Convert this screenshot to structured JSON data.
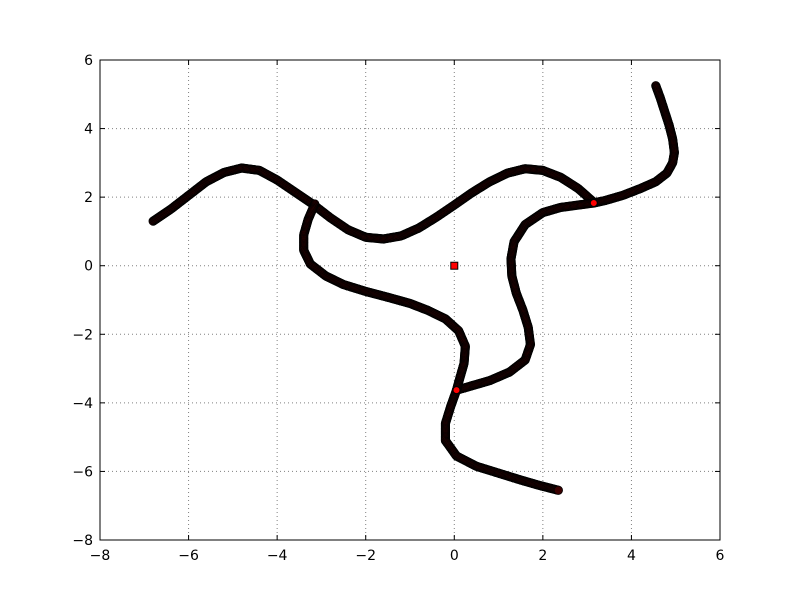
{
  "chart_data": {
    "type": "scatter",
    "title": "",
    "xlabel": "",
    "ylabel": "",
    "xlim": [
      -8,
      6
    ],
    "ylim": [
      -8,
      6
    ],
    "xticks": [
      -8,
      -6,
      -4,
      -2,
      0,
      2,
      4,
      6
    ],
    "yticks": [
      -8,
      -6,
      -4,
      -2,
      0,
      2,
      4,
      6
    ],
    "xtick_labels": [
      "−8",
      "−6",
      "−4",
      "−2",
      "0",
      "2",
      "4",
      "6"
    ],
    "ytick_labels": [
      "−8",
      "−6",
      "−4",
      "−2",
      "0",
      "2",
      "4",
      "6"
    ],
    "grid": true,
    "grid_style": "dotted",
    "legend": "none",
    "colors": {
      "trajectory_fill": "#3a0000",
      "trajectory_edge": "#000000",
      "highlight_fill": "#ff0000",
      "highlight_edge": "#000000",
      "grid": "#808080"
    },
    "series": [
      {
        "points": [
          [
            -6.8,
            1.3
          ],
          [
            -6.4,
            1.65
          ],
          [
            -6.0,
            2.05
          ],
          [
            -5.6,
            2.45
          ],
          [
            -5.2,
            2.72
          ],
          [
            -4.8,
            2.85
          ],
          [
            -4.4,
            2.78
          ],
          [
            -4.0,
            2.5
          ],
          [
            -3.6,
            2.15
          ],
          [
            -3.2,
            1.8
          ],
          [
            -2.8,
            1.4
          ],
          [
            -2.4,
            1.05
          ],
          [
            -2.0,
            0.83
          ],
          [
            -1.6,
            0.78
          ],
          [
            -1.2,
            0.87
          ],
          [
            -0.8,
            1.1
          ],
          [
            -0.4,
            1.42
          ],
          [
            0.0,
            1.77
          ],
          [
            0.4,
            2.13
          ],
          [
            0.8,
            2.45
          ],
          [
            1.2,
            2.7
          ],
          [
            1.6,
            2.83
          ],
          [
            2.0,
            2.78
          ],
          [
            2.4,
            2.58
          ],
          [
            2.8,
            2.25
          ],
          [
            3.15,
            1.85
          ]
        ]
      },
      {
        "points": [
          [
            4.55,
            5.25
          ],
          [
            4.65,
            4.9
          ],
          [
            4.75,
            4.5
          ],
          [
            4.85,
            4.1
          ],
          [
            4.93,
            3.7
          ],
          [
            4.97,
            3.3
          ],
          [
            4.93,
            3.0
          ],
          [
            4.8,
            2.7
          ],
          [
            4.55,
            2.45
          ],
          [
            4.2,
            2.25
          ],
          [
            3.8,
            2.05
          ],
          [
            3.4,
            1.9
          ],
          [
            3.15,
            1.83
          ],
          [
            2.8,
            1.77
          ],
          [
            2.4,
            1.7
          ],
          [
            2.0,
            1.55
          ],
          [
            1.6,
            1.2
          ],
          [
            1.35,
            0.7
          ],
          [
            1.28,
            0.2
          ],
          [
            1.3,
            -0.3
          ],
          [
            1.4,
            -0.8
          ],
          [
            1.55,
            -1.3
          ],
          [
            1.67,
            -1.8
          ],
          [
            1.72,
            -2.3
          ],
          [
            1.6,
            -2.75
          ],
          [
            1.25,
            -3.1
          ],
          [
            0.8,
            -3.35
          ],
          [
            0.4,
            -3.5
          ],
          [
            0.05,
            -3.63
          ]
        ]
      },
      {
        "points": [
          [
            -3.15,
            1.8
          ],
          [
            -3.3,
            1.35
          ],
          [
            -3.4,
            0.9
          ],
          [
            -3.4,
            0.45
          ],
          [
            -3.25,
            0.05
          ],
          [
            -2.9,
            -0.3
          ],
          [
            -2.5,
            -0.55
          ],
          [
            -2.0,
            -0.75
          ],
          [
            -1.5,
            -0.92
          ],
          [
            -1.0,
            -1.1
          ],
          [
            -0.6,
            -1.3
          ],
          [
            -0.2,
            -1.55
          ],
          [
            0.1,
            -1.9
          ],
          [
            0.25,
            -2.35
          ],
          [
            0.22,
            -2.85
          ],
          [
            0.12,
            -3.3
          ],
          [
            0.05,
            -3.63
          ],
          [
            -0.08,
            -4.1
          ],
          [
            -0.2,
            -4.6
          ],
          [
            -0.2,
            -5.1
          ],
          [
            0.05,
            -5.55
          ],
          [
            0.5,
            -5.85
          ],
          [
            1.0,
            -6.05
          ],
          [
            1.5,
            -6.25
          ],
          [
            1.9,
            -6.4
          ],
          [
            2.35,
            -6.55
          ]
        ]
      }
    ],
    "highlights": [
      {
        "x": 0.0,
        "y": 0.0,
        "marker": "square"
      },
      {
        "x": 3.15,
        "y": 1.83,
        "marker": "circle"
      },
      {
        "x": 0.05,
        "y": -3.63,
        "marker": "circle"
      }
    ]
  }
}
